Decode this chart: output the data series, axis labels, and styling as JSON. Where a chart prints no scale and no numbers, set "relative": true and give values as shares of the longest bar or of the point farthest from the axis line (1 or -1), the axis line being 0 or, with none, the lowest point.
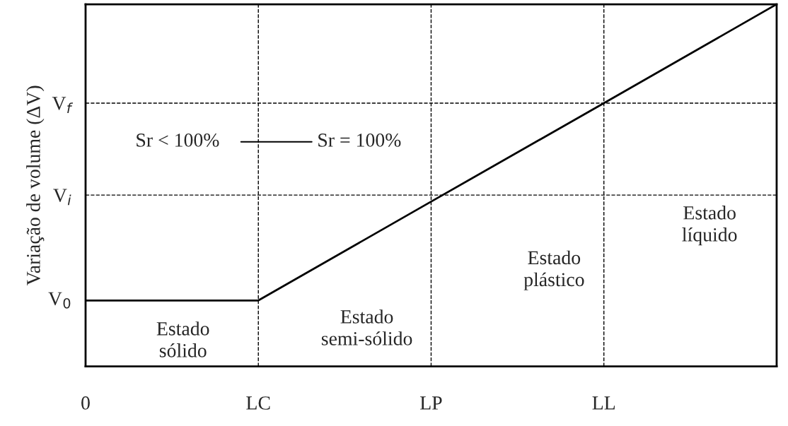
{
  "chart_data": {
    "type": "line",
    "ylabel": "Variação de volume (ΔV)",
    "relative": true,
    "categories": [
      "0",
      "LC",
      "LP",
      "LL",
      null
    ],
    "series": [
      {
        "color": "#000000",
        "values": [
          0.182,
          0.182,
          0.455,
          0.727,
          1
        ]
      }
    ],
    "ref_lines": [
      {
        "axis": "x",
        "value": "LC",
        "line_style": "dashed"
      },
      {
        "axis": "x",
        "value": "LP",
        "line_style": "dashed"
      },
      {
        "axis": "x",
        "value": "LL",
        "line_style": "dashed"
      },
      {
        "axis": "y",
        "value": 0.473,
        "line_style": "dashed",
        "label": "V$_{i}$"
      },
      {
        "axis": "y",
        "value": 0.727,
        "line_style": "dashed",
        "label": "V$_{f}$"
      }
    ],
    "annotations": [
      {
        "text": "V$_{0}$",
        "x": "0",
        "y": 0.182
      },
      "Sr < 100%",
      "Sr = 100%",
      "Estado\nsólido",
      "Estado\nsemi-sólido",
      "Estado\nplástico",
      "Estado\nlíquido"
    ],
    "grid": false,
    "legend": false,
    "marker": "none",
    "line_style": "solid"
  }
}
